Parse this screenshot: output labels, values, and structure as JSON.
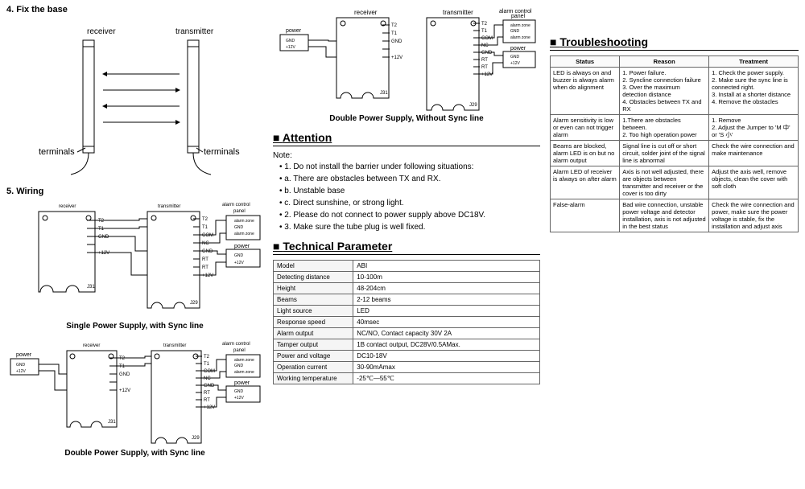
{
  "sections": {
    "fix_base": {
      "title": "4. Fix the base",
      "labels": {
        "receiver": "receiver",
        "transmitter": "transmitter",
        "terminals": "terminals"
      }
    },
    "wiring": {
      "title": "5. Wiring",
      "cap1": "Single Power Supply, with Sync line",
      "cap2": "Double Power Supply, with Sync line",
      "cap3": "Double Power Supply,  Without Sync line",
      "labels": {
        "receiver": "receiver",
        "transmitter": "transmitter",
        "panel": "alarm control panel",
        "power": "power"
      },
      "pins_rx": [
        "T2",
        "T1",
        "GND",
        "",
        "+12V",
        "J31"
      ],
      "pins_tx": [
        "T2",
        "T1",
        "COM",
        "NC",
        "GND",
        "RT",
        "RT",
        "+12V",
        "J29"
      ],
      "pins_panel": [
        "alarm zone",
        "GND",
        "alarm zone"
      ],
      "pins_power": [
        "GND",
        "+12V"
      ]
    },
    "attention": {
      "title": "Attention",
      "note_label": "Note:",
      "items": [
        "1. Do not install the barrier under following situations:",
        "a. There are obstacles between TX and RX.",
        "b. Unstable base",
        "c. Direct sunshine, or strong light.",
        "2. Please do not connect to power supply above DC18V.",
        "3. Make sure the tube plug is well fixed."
      ]
    },
    "technical": {
      "title": "Technical Parameter",
      "rows": [
        [
          "Model",
          "ABI"
        ],
        [
          "Detecting distance",
          "10-100m"
        ],
        [
          "Height",
          "48-204cm"
        ],
        [
          "Beams",
          "2-12 beams"
        ],
        [
          "Light source",
          "LED"
        ],
        [
          "Response speed",
          "40msec"
        ],
        [
          "Alarm output",
          "NC/NO, Contact capacity 30V 2A"
        ],
        [
          "Tamper output",
          "1B contact output,  DC28V/0.5AMax."
        ],
        [
          "Power and voltage",
          "DC10-18V"
        ],
        [
          "Operation current",
          "30-90mAmax"
        ],
        [
          "Working temperature",
          "-25℃—55℃"
        ]
      ]
    },
    "trouble": {
      "title": "Troubleshooting",
      "headers": [
        "Status",
        "Reason",
        "Treatment"
      ],
      "rows": [
        [
          "LED is always on and buzzer is always alarm when do alignment",
          "1. Power failure.\n2. Syncline connection failure\n3. Over the maximum detection distance\n4. Obstacles between TX and RX",
          "1. Check the power supply.\n2. Make sure the sync line is connected right.\n3. Install at a shorter distance\n4. Remove the obstacles"
        ],
        [
          "Alarm sensitivity is low or even can not trigger alarm",
          "1.There are obstacles between.\n2. Too high operation power",
          "1. Remove\n2. Adjust the Jumper to 'M 中' or 'S 小'"
        ],
        [
          "Beams are blocked, alarm LED is on but no alarm output",
          "Signal line is cut off or short circuit, solder joint of the signal line is abnormal",
          "Check the wire connection and make maintenance"
        ],
        [
          "Alarm LED of receiver is always on after alarm",
          "Axis is not well adjusted, there are objects between transmitter and receiver or the cover is too dirty",
          "Adjust the axis well, remove objects, clean the cover with soft cloth"
        ],
        [
          "False-alarm",
          "Bad wire connection, unstable power voltage and detector installation, axis is not adjusted in the best status",
          "Check the wire connection and power, make sure the power voltage is stable, fix the installation and adjust axis"
        ]
      ]
    }
  },
  "colors": {
    "line": "#000000",
    "bg": "#ffffff",
    "border": "#666666"
  }
}
